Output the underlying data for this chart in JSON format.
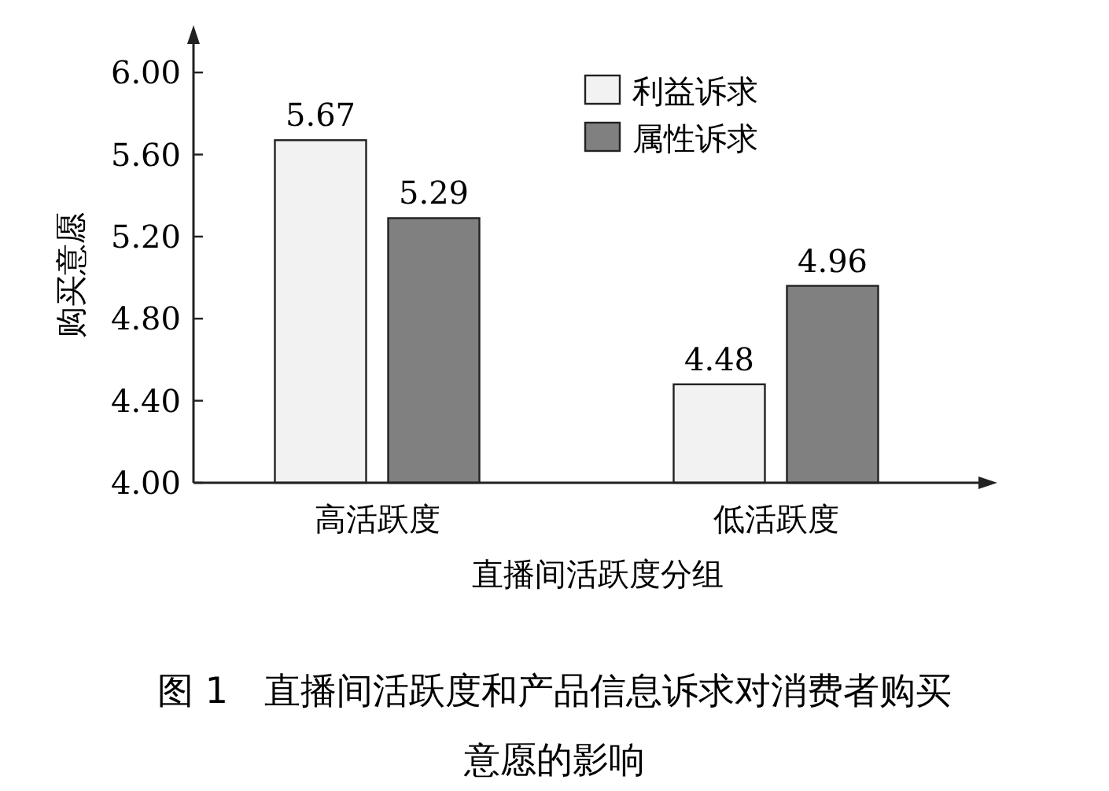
{
  "chart_data": {
    "type": "bar",
    "title": "图 1　直播间活跃度和产品信息诉求对消费者购买意愿的影响",
    "xlabel": "直播间活跃度分组",
    "ylabel": "购买意愿",
    "categories": [
      "高活跃度",
      "低活跃度"
    ],
    "series": [
      {
        "name": "利益诉求",
        "color": "#f2f2f2",
        "values": [
          5.67,
          4.48
        ]
      },
      {
        "name": "属性诉求",
        "color": "#808080",
        "values": [
          5.29,
          4.96
        ]
      }
    ],
    "ylim": [
      4,
      6.2
    ],
    "yticks": [
      {
        "value": 4,
        "label": "4.00"
      },
      {
        "value": 4.4,
        "label": "4.40"
      },
      {
        "value": 4.8,
        "label": "4.80"
      },
      {
        "value": 5.2,
        "label": "5.20"
      },
      {
        "value": 5.6,
        "label": "5.60"
      },
      {
        "value": 6,
        "label": "6.00"
      }
    ],
    "data_labels": true,
    "grid": false,
    "legend": "top"
  }
}
